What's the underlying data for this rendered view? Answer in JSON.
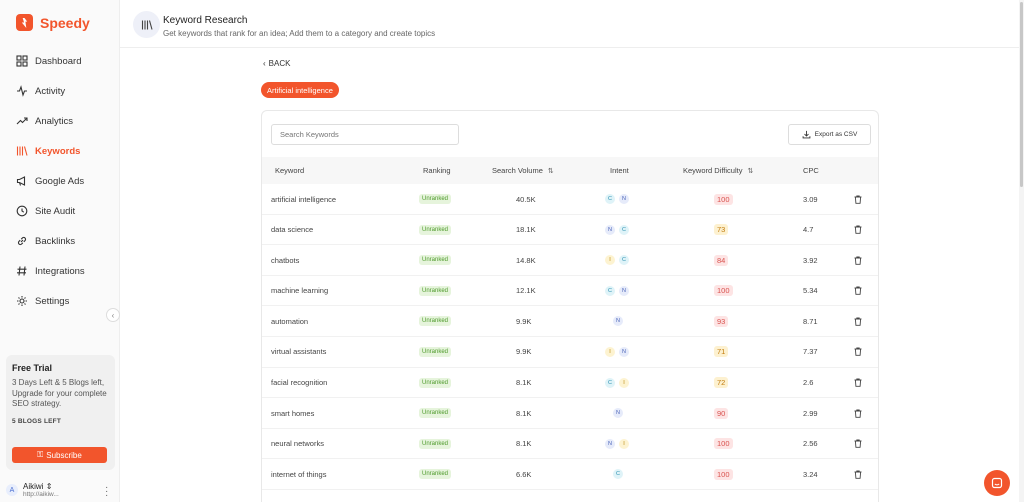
{
  "brand": {
    "name": "Speedy"
  },
  "sidebar": {
    "items": [
      {
        "label": "Dashboard",
        "icon": "dashboard-icon"
      },
      {
        "label": "Activity",
        "icon": "activity-icon"
      },
      {
        "label": "Analytics",
        "icon": "analytics-icon"
      },
      {
        "label": "Keywords",
        "icon": "keywords-icon",
        "active": true
      },
      {
        "label": "Google Ads",
        "icon": "megaphone-icon"
      },
      {
        "label": "Site Audit",
        "icon": "site-audit-icon"
      },
      {
        "label": "Backlinks",
        "icon": "link-icon"
      },
      {
        "label": "Integrations",
        "icon": "hash-icon"
      },
      {
        "label": "Settings",
        "icon": "gear-icon"
      }
    ],
    "trial": {
      "title": "Free Trial",
      "description": "3 Days Left & 5 Blogs left, Upgrade for your complete SEO strategy.",
      "blogs_left": "5 BLOGS LEFT",
      "subscribe_label": "Subscribe"
    },
    "user": {
      "initial": "A",
      "name": "Aikiwi",
      "url": "http://aikiw..."
    }
  },
  "header": {
    "title": "Keyword Research",
    "subtitle": "Get keywords that rank for an idea; Add them to a category and create topics"
  },
  "main": {
    "back_label": "BACK",
    "topic": "Artificial intelligence",
    "search_placeholder": "Search Keywords",
    "export_label": "Export as CSV",
    "columns": {
      "keyword": "Keyword",
      "ranking": "Ranking",
      "volume": "Search Volume",
      "intent": "Intent",
      "difficulty": "Keyword Difficulty",
      "cpc": "CPC"
    },
    "rows": [
      {
        "keyword": "artificial intelligence",
        "ranking": "Unranked",
        "volume": "40.5K",
        "intent": [
          "C",
          "N"
        ],
        "difficulty": "100",
        "cpc": "3.09"
      },
      {
        "keyword": "data science",
        "ranking": "Unranked",
        "volume": "18.1K",
        "intent": [
          "N",
          "C"
        ],
        "difficulty": "73",
        "cpc": "4.7"
      },
      {
        "keyword": "chatbots",
        "ranking": "Unranked",
        "volume": "14.8K",
        "intent": [
          "I",
          "C"
        ],
        "difficulty": "84",
        "cpc": "3.92"
      },
      {
        "keyword": "machine learning",
        "ranking": "Unranked",
        "volume": "12.1K",
        "intent": [
          "C",
          "N"
        ],
        "difficulty": "100",
        "cpc": "5.34"
      },
      {
        "keyword": "automation",
        "ranking": "Unranked",
        "volume": "9.9K",
        "intent": [
          "N"
        ],
        "difficulty": "93",
        "cpc": "8.71"
      },
      {
        "keyword": "virtual assistants",
        "ranking": "Unranked",
        "volume": "9.9K",
        "intent": [
          "I",
          "N"
        ],
        "difficulty": "71",
        "cpc": "7.37"
      },
      {
        "keyword": "facial recognition",
        "ranking": "Unranked",
        "volume": "8.1K",
        "intent": [
          "C",
          "I"
        ],
        "difficulty": "72",
        "cpc": "2.6"
      },
      {
        "keyword": "smart homes",
        "ranking": "Unranked",
        "volume": "8.1K",
        "intent": [
          "N"
        ],
        "difficulty": "90",
        "cpc": "2.99"
      },
      {
        "keyword": "neural networks",
        "ranking": "Unranked",
        "volume": "8.1K",
        "intent": [
          "N",
          "I"
        ],
        "difficulty": "100",
        "cpc": "2.56"
      },
      {
        "keyword": "internet of things",
        "ranking": "Unranked",
        "volume": "6.6K",
        "intent": [
          "C"
        ],
        "difficulty": "100",
        "cpc": "3.24"
      }
    ]
  },
  "colors": {
    "accent": "#f2552c",
    "intent_C_bg": "#dff3f8",
    "intent_C_fg": "#2a8fb0",
    "intent_N_bg": "#e6ebfa",
    "intent_N_fg": "#4a63b8",
    "intent_I_bg": "#fdf3d1",
    "intent_I_fg": "#b8860b",
    "diff_high_bg": "#fde4e4",
    "diff_high_fg": "#d9534f",
    "diff_mid_bg": "#fdf1d0",
    "diff_mid_fg": "#c27c0e"
  }
}
